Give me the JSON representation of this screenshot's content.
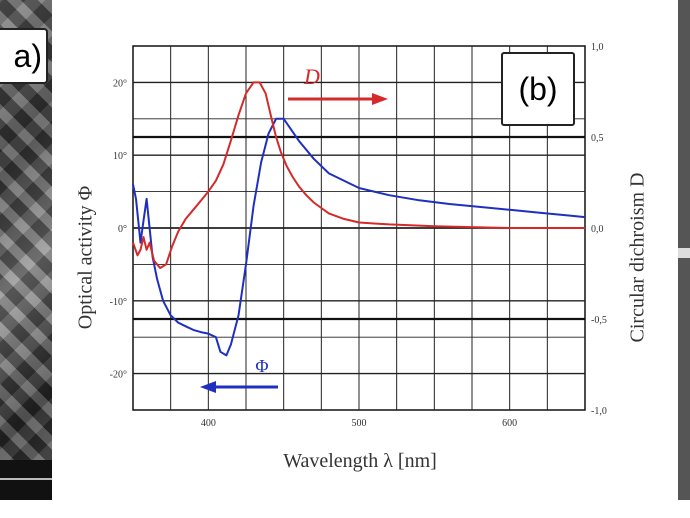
{
  "figure": {
    "panel_a_label": "a)",
    "panel_b_label": "(b)"
  },
  "chart_data": {
    "type": "line",
    "xlabel": "Wavelength λ [nm]",
    "ylabel_left": "Optical activity Φ",
    "ylabel_right": "Circular dichroism D",
    "xlim": [
      350,
      650
    ],
    "ylim_left": [
      -25,
      25
    ],
    "ylim_right": [
      -1.0,
      1.0
    ],
    "x_ticks": [
      400,
      500,
      600
    ],
    "x_tick_labels": [
      "400",
      "500",
      "600"
    ],
    "y_left_ticks": [
      20,
      10,
      0,
      -10,
      -20
    ],
    "y_left_tick_labels": [
      "20°",
      "10°",
      "0°",
      "-10°",
      "-20°"
    ],
    "y_right_ticks": [
      1.0,
      0.5,
      0.0,
      -0.5,
      -1.0
    ],
    "y_right_tick_labels": [
      "1,0",
      "0,5",
      "0,0",
      "-0,5",
      "-1,0"
    ],
    "grid": true,
    "series": [
      {
        "name": "Φ",
        "axis": "left",
        "color": "#1f2fbf",
        "x": [
          350,
          352,
          355,
          357,
          359,
          361,
          363,
          366,
          370,
          375,
          380,
          385,
          390,
          395,
          400,
          405,
          408,
          412,
          415,
          420,
          425,
          430,
          435,
          440,
          445,
          450,
          460,
          470,
          480,
          500,
          520,
          540,
          560,
          580,
          600,
          620,
          640,
          650
        ],
        "y": [
          6,
          4,
          -2,
          1,
          4,
          0,
          -4,
          -7,
          -10,
          -12,
          -13,
          -13.5,
          -14,
          -14.3,
          -14.5,
          -15,
          -17,
          -17.5,
          -16,
          -12,
          -5,
          3,
          9,
          13,
          15,
          15,
          12,
          9.5,
          7.5,
          5.5,
          4.5,
          3.8,
          3.3,
          2.9,
          2.5,
          2.1,
          1.7,
          1.5
        ]
      },
      {
        "name": "D",
        "axis": "right",
        "color": "#d42a2a",
        "x": [
          350,
          353,
          355,
          357,
          359,
          361,
          364,
          368,
          372,
          376,
          380,
          385,
          390,
          395,
          400,
          405,
          410,
          415,
          420,
          425,
          430,
          434,
          438,
          442,
          445,
          448,
          452,
          456,
          460,
          465,
          470,
          475,
          480,
          490,
          500,
          520,
          550,
          600,
          650
        ],
        "y": [
          -0.08,
          -0.15,
          -0.12,
          -0.05,
          -0.12,
          -0.08,
          -0.18,
          -0.22,
          -0.2,
          -0.1,
          -0.02,
          0.05,
          0.1,
          0.15,
          0.2,
          0.26,
          0.35,
          0.48,
          0.62,
          0.74,
          0.8,
          0.8,
          0.74,
          0.6,
          0.5,
          0.42,
          0.34,
          0.28,
          0.23,
          0.18,
          0.14,
          0.11,
          0.08,
          0.05,
          0.03,
          0.02,
          0.01,
          0.0,
          0.0
        ]
      }
    ],
    "annotations": [
      {
        "text": "D",
        "color": "#d42a2a",
        "arrow": "right"
      },
      {
        "text": "Φ",
        "color": "#1f2fbf",
        "arrow": "left"
      }
    ]
  }
}
